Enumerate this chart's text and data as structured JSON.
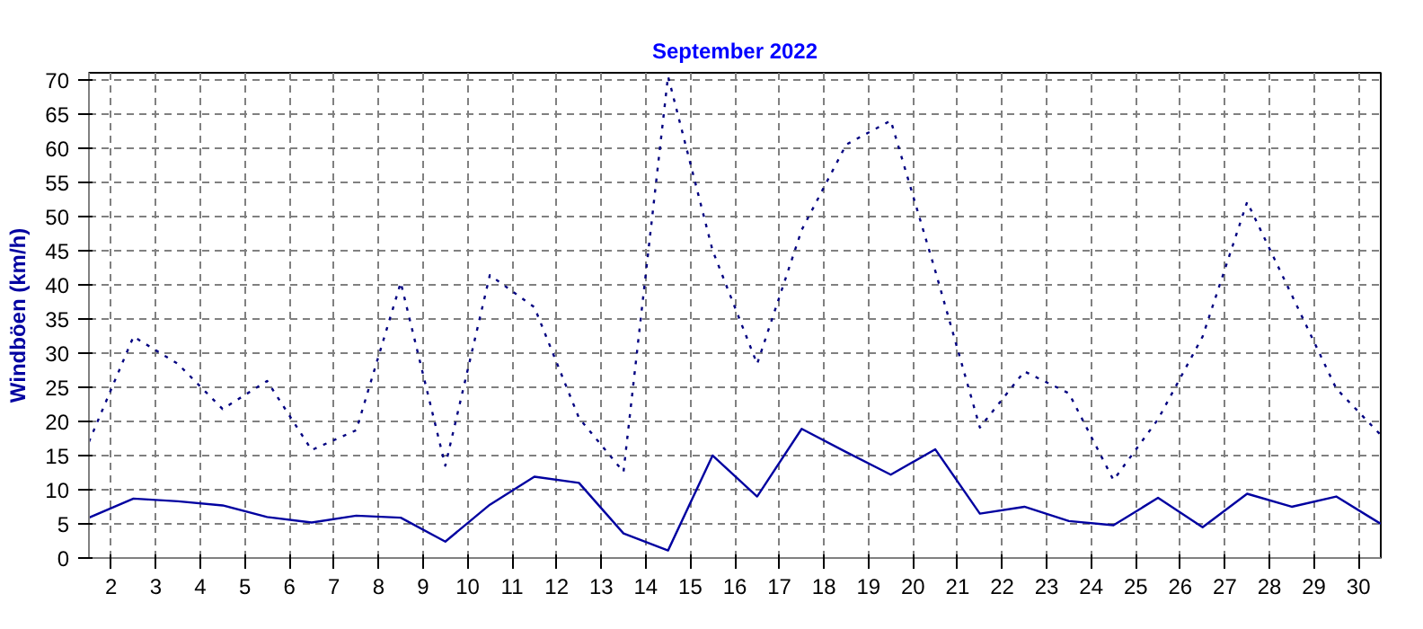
{
  "chart_data": {
    "type": "line",
    "title": "September 2022",
    "ylabel": "Windböen (km/h)",
    "x": [
      1.5,
      2.5,
      3.5,
      4.5,
      5.5,
      6.5,
      7.5,
      8.5,
      9.5,
      10.5,
      11.5,
      12.5,
      13.5,
      14.5,
      15.5,
      16.5,
      17.5,
      18.5,
      19.5,
      20.5,
      21.5,
      22.5,
      23.5,
      24.5,
      25.5,
      26.5,
      27.5,
      28.5,
      29.5,
      30.5
    ],
    "series": [
      {
        "color": "#000080",
        "line_style": "dotted",
        "values": [
          17,
          32.4,
          28.4,
          21.8,
          25.9,
          15.8,
          18.7,
          40.3,
          13.5,
          41.4,
          36.7,
          20.5,
          12.6,
          70.5,
          45,
          28.4,
          48,
          60.5,
          64,
          42,
          19.1,
          27.3,
          24.1,
          11.4,
          20.3,
          32.4,
          52.1,
          38.5,
          24.8,
          18
        ]
      },
      {
        "color": "#0000a0",
        "line_style": "solid",
        "values": [
          5.9,
          8.7,
          8.3,
          7.7,
          6.0,
          5.2,
          6.2,
          5.9,
          2.4,
          7.8,
          11.9,
          11.0,
          3.6,
          1.1,
          15.0,
          9.0,
          18.9,
          15.5,
          12.2,
          15.9,
          6.5,
          7.5,
          5.4,
          4.8,
          8.8,
          4.5,
          9.4,
          7.5,
          9.0,
          5.0
        ]
      }
    ],
    "xlim": [
      1.5,
      30.5
    ],
    "xticks": [
      2,
      3,
      4,
      5,
      6,
      7,
      8,
      9,
      10,
      11,
      12,
      13,
      14,
      15,
      16,
      17,
      18,
      19,
      20,
      21,
      22,
      23,
      24,
      25,
      26,
      27,
      28,
      29,
      30
    ],
    "ylim": [
      0,
      71
    ],
    "yticks": [
      0,
      5,
      10,
      15,
      20,
      25,
      30,
      35,
      40,
      45,
      50,
      55,
      60,
      65,
      70
    ],
    "grid": true,
    "marker": "none"
  }
}
